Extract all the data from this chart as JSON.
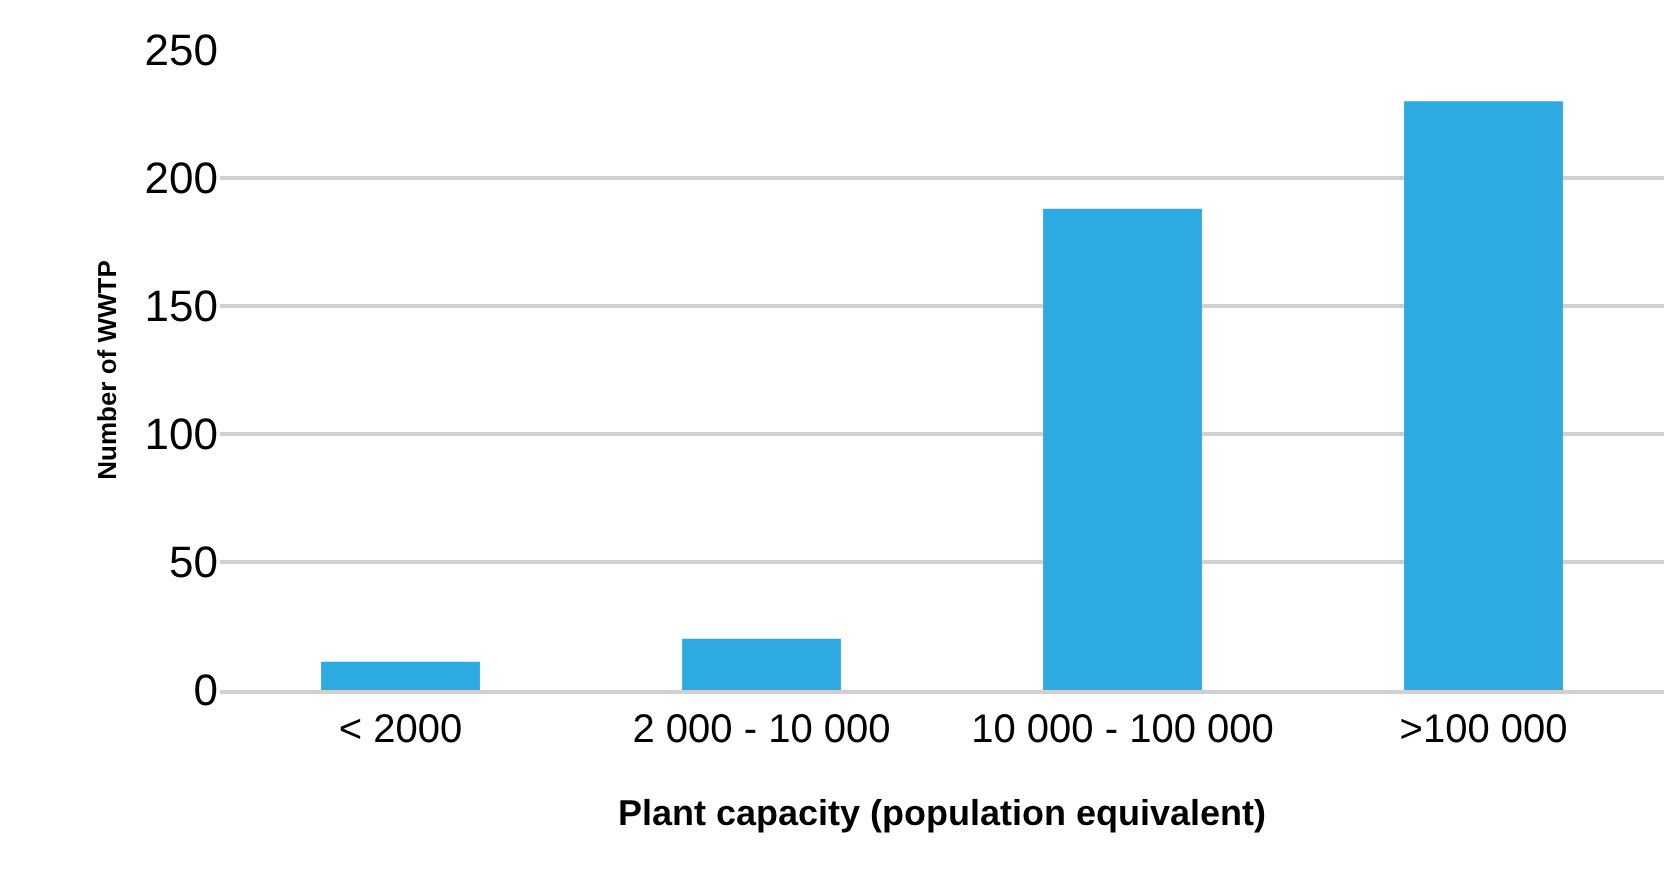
{
  "chart_data": {
    "type": "bar",
    "xlabel": "Plant capacity (population equivalent)",
    "ylabel": "Number of WWTP",
    "categories": [
      "< 2000",
      "2 000 - 10 000",
      "10 000 - 100 000",
      ">100 000"
    ],
    "values": [
      11,
      20,
      188,
      230
    ],
    "color": "#2eaae2",
    "ylim": [
      0,
      250
    ],
    "yticks": [
      0,
      50,
      100,
      150,
      200,
      250
    ],
    "grid": "y",
    "legend": false
  }
}
